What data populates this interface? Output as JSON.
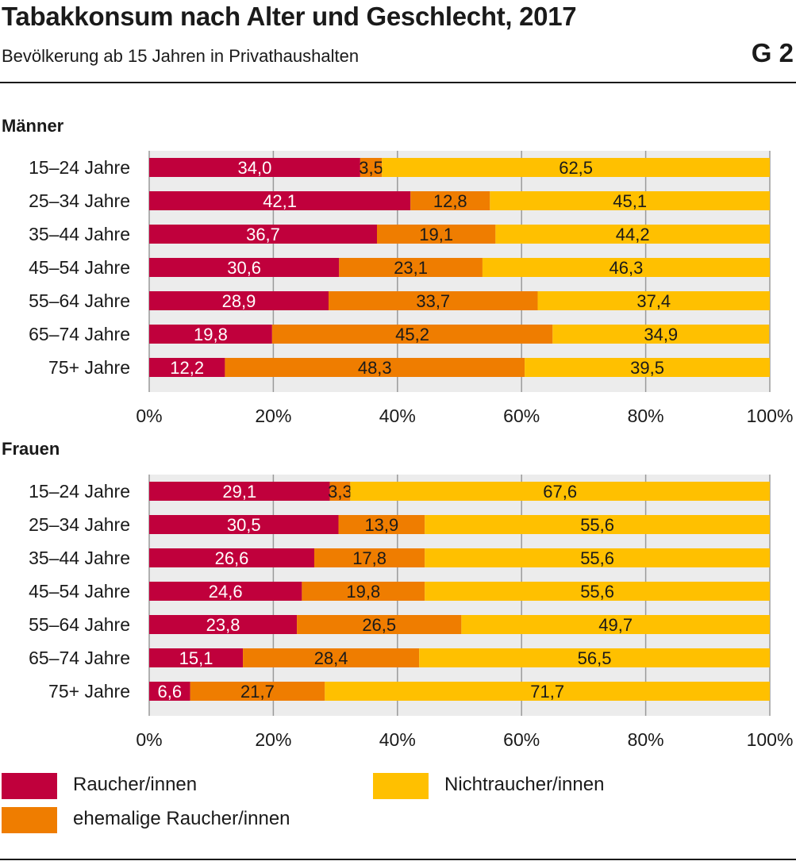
{
  "header": {
    "title": "Tabakkonsum nach Alter und Geschlecht, 2017",
    "subtitle": "Bevölkerung ab 15 Jahren in Privathaushalten",
    "figure_code": "G 2"
  },
  "colors": {
    "raucher": "#c0003c",
    "ehemalige": "#ef7d00",
    "nichtraucher": "#ffc000",
    "plot_background": "#ececec",
    "grid": "#9a9a9a"
  },
  "legend": {
    "raucher": "Raucher/innen",
    "ehemalige": "ehemalige Raucher/innen",
    "nichtraucher": "Nichtraucher/innen"
  },
  "chart_data": [
    {
      "type": "bar",
      "orientation": "horizontal",
      "stacked": true,
      "title": "Männer",
      "categories": [
        "15–24 Jahre",
        "25–34 Jahre",
        "35–44 Jahre",
        "45–54 Jahre",
        "55–64 Jahre",
        "65–74 Jahre",
        "75+ Jahre"
      ],
      "series": [
        {
          "name": "Raucher/innen",
          "values": [
            34.0,
            42.1,
            36.7,
            30.6,
            28.9,
            19.8,
            12.2
          ],
          "labels": [
            "34,0",
            "42,1",
            "36,7",
            "30,6",
            "28,9",
            "19,8",
            "12,2"
          ]
        },
        {
          "name": "ehemalige Raucher/innen",
          "values": [
            3.5,
            12.8,
            19.1,
            23.1,
            33.7,
            45.2,
            48.3
          ],
          "labels": [
            "3,5",
            "12,8",
            "19,1",
            "23,1",
            "33,7",
            "45,2",
            "48,3"
          ]
        },
        {
          "name": "Nichtraucher/innen",
          "values": [
            62.5,
            45.1,
            44.2,
            46.3,
            37.4,
            34.9,
            39.5
          ],
          "labels": [
            "62,5",
            "45,1",
            "44,2",
            "46,3",
            "37,4",
            "34,9",
            "39,5"
          ]
        }
      ],
      "xlim": [
        0,
        100
      ],
      "xticks": [
        "0%",
        "20%",
        "40%",
        "60%",
        "80%",
        "100%"
      ],
      "grid": true
    },
    {
      "type": "bar",
      "orientation": "horizontal",
      "stacked": true,
      "title": "Frauen",
      "categories": [
        "15–24 Jahre",
        "25–34 Jahre",
        "35–44 Jahre",
        "45–54 Jahre",
        "55–64 Jahre",
        "65–74 Jahre",
        "75+ Jahre"
      ],
      "series": [
        {
          "name": "Raucher/innen",
          "values": [
            29.1,
            30.5,
            26.6,
            24.6,
            23.8,
            15.1,
            6.6
          ],
          "labels": [
            "29,1",
            "30,5",
            "26,6",
            "24,6",
            "23,8",
            "15,1",
            "6,6"
          ]
        },
        {
          "name": "ehemalige Raucher/innen",
          "values": [
            3.3,
            13.9,
            17.8,
            19.8,
            26.5,
            28.4,
            21.7
          ],
          "labels": [
            "3,3",
            "13,9",
            "17,8",
            "19,8",
            "26,5",
            "28,4",
            "21,7"
          ]
        },
        {
          "name": "Nichtraucher/innen",
          "values": [
            67.6,
            55.6,
            55.6,
            55.6,
            49.7,
            56.5,
            71.7
          ],
          "labels": [
            "67,6",
            "55,6",
            "55,6",
            "55,6",
            "49,7",
            "56,5",
            "71,7"
          ]
        }
      ],
      "xlim": [
        0,
        100
      ],
      "xticks": [
        "0%",
        "20%",
        "40%",
        "60%",
        "80%",
        "100%"
      ],
      "grid": true
    }
  ]
}
